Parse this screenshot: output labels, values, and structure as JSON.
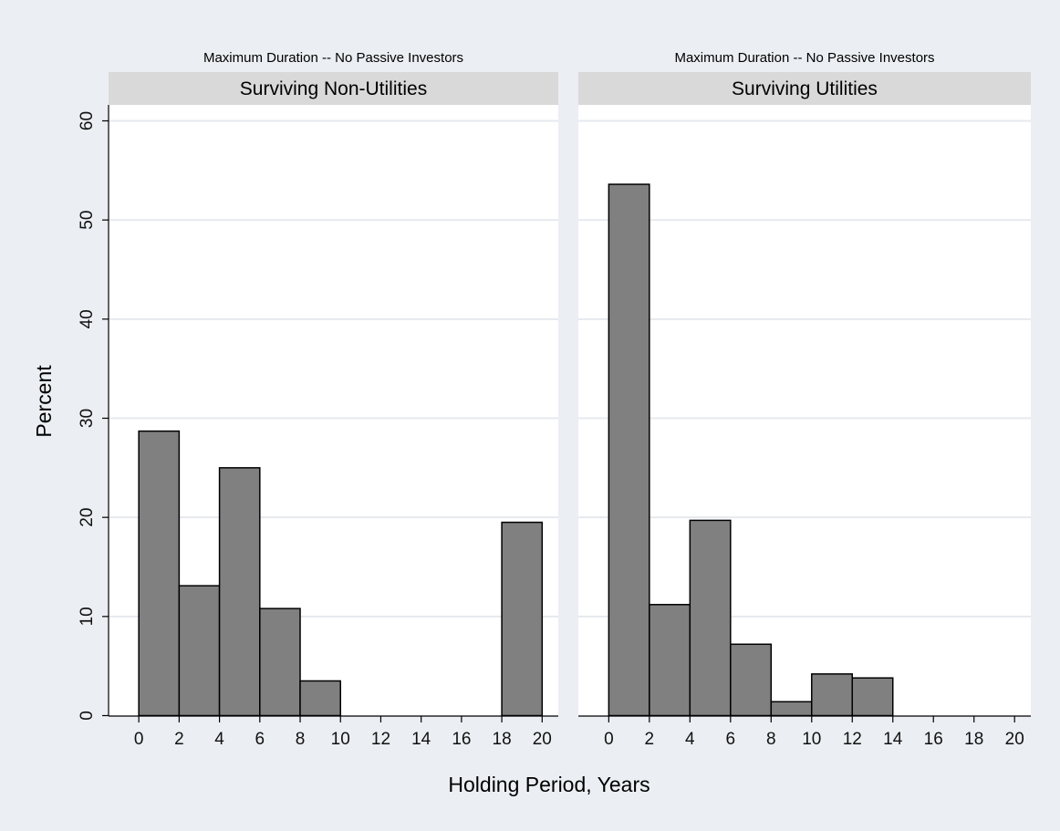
{
  "chart_data": [
    {
      "type": "bar",
      "title": "Maximum Duration -- No Passive Investors",
      "subtitle": "Surviving Non-Utilities",
      "x": [
        0,
        2,
        4,
        6,
        8,
        10,
        12,
        14,
        16,
        18,
        20
      ],
      "bins": [
        {
          "start": 0,
          "end": 2,
          "value": 28.7
        },
        {
          "start": 2,
          "end": 4,
          "value": 13.1
        },
        {
          "start": 4,
          "end": 6,
          "value": 25.0
        },
        {
          "start": 6,
          "end": 8,
          "value": 10.8
        },
        {
          "start": 8,
          "end": 10,
          "value": 3.5
        },
        {
          "start": 18,
          "end": 20,
          "value": 19.5
        }
      ],
      "xlabel": "Holding Period, Years",
      "ylabel": "Percent",
      "xlim": [
        -1.5,
        20.8
      ],
      "ylim": [
        0,
        60
      ],
      "yticks": [
        0,
        10,
        20,
        30,
        40,
        50,
        60
      ],
      "bar_color": "#808080",
      "grid": true
    },
    {
      "type": "bar",
      "title": "Maximum Duration -- No Passive Investors",
      "subtitle": "Surviving Utilities",
      "x": [
        0,
        2,
        4,
        6,
        8,
        10,
        12,
        14,
        16,
        18,
        20
      ],
      "bins": [
        {
          "start": 0,
          "end": 2,
          "value": 53.6
        },
        {
          "start": 2,
          "end": 4,
          "value": 11.2
        },
        {
          "start": 4,
          "end": 6,
          "value": 19.7
        },
        {
          "start": 6,
          "end": 8,
          "value": 7.2
        },
        {
          "start": 8,
          "end": 10,
          "value": 1.4
        },
        {
          "start": 10,
          "end": 12,
          "value": 4.2
        },
        {
          "start": 12,
          "end": 14,
          "value": 3.8
        }
      ],
      "xlabel": "Holding Period, Years",
      "ylabel": "Percent",
      "xlim": [
        -1.5,
        20.8
      ],
      "ylim": [
        0,
        60
      ],
      "yticks": [
        0,
        10,
        20,
        30,
        40,
        50,
        60
      ],
      "bar_color": "#808080",
      "grid": true
    }
  ],
  "axis": {
    "xlabel": "Holding Period, Years",
    "ylabel": "Percent"
  },
  "colors": {
    "background": "#ebeef2",
    "panel_bg": "#ffffff",
    "header_bg": "#d9d9d9",
    "grid": "#e6e9ee",
    "bar_fill": "#808080",
    "bar_stroke": "#000000"
  }
}
